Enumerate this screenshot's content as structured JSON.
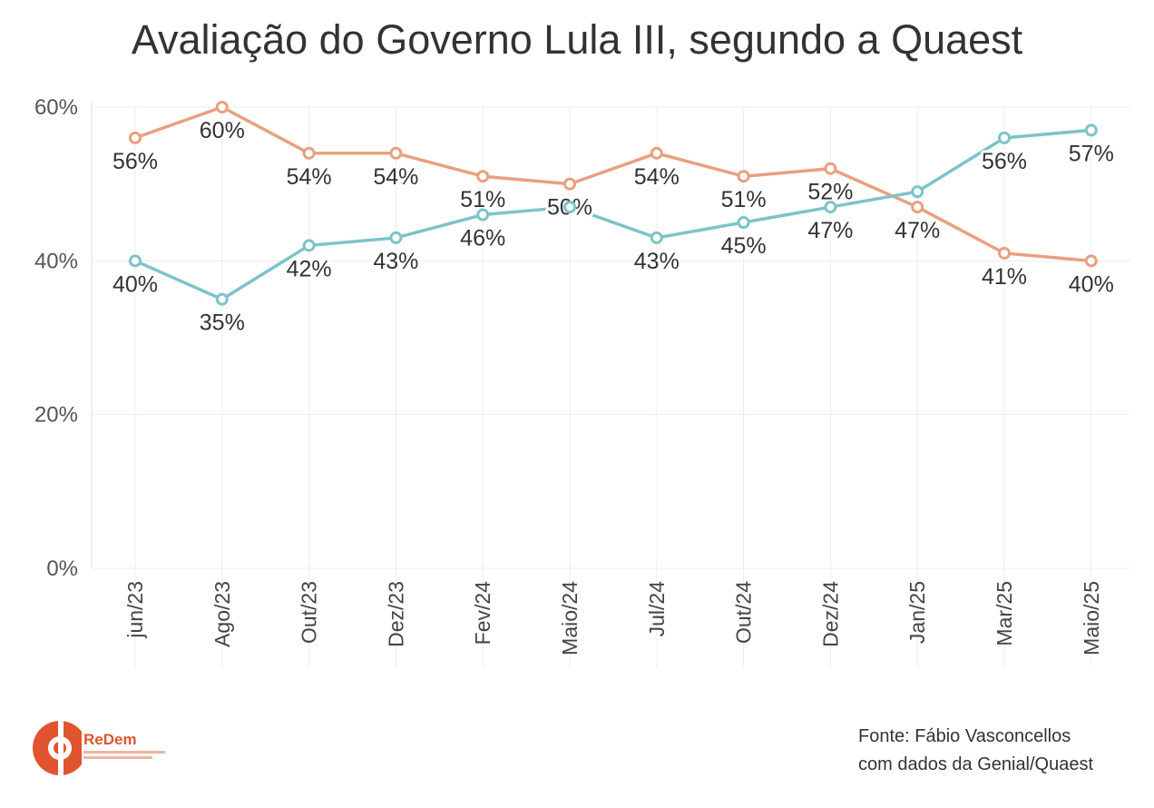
{
  "chart_data": {
    "type": "line",
    "title": "Avaliação do Governo Lula III, segundo a Quaest",
    "categories": [
      "jun/23",
      "Ago/23",
      "Out/23",
      "Dez/23",
      "Fev/24",
      "Maio/24",
      "Jul/24",
      "Out/24",
      "Dez/24",
      "Jan/25",
      "Mar/25",
      "Maio/25"
    ],
    "series": [
      {
        "color": "#e9a07f",
        "values": [
          56,
          60,
          54,
          54,
          51,
          50,
          54,
          51,
          52,
          47,
          41,
          40
        ],
        "labels": [
          "56%",
          "60%",
          "54%",
          "54%",
          "51%",
          "50%",
          "54%",
          "51%",
          "52%",
          "47%",
          "41%",
          "40%"
        ]
      },
      {
        "color": "#7cc4c8",
        "values": [
          40,
          35,
          42,
          43,
          46,
          47,
          43,
          45,
          47,
          49,
          56,
          57
        ],
        "labels": [
          "40%",
          "35%",
          "42%",
          "43%",
          "46%",
          "",
          "43%",
          "45%",
          "47%",
          "",
          "56%",
          "57%"
        ]
      }
    ],
    "yticks": [
      "0%",
      "20%",
      "40%",
      "60%"
    ],
    "ylim": [
      0,
      60
    ],
    "grid": true
  },
  "footer": {
    "source_line1": "Fonte: Fábio Vasconcellos",
    "source_line2": "com dados da Genial/Quaest"
  },
  "logo": {
    "name": "ReDem"
  }
}
